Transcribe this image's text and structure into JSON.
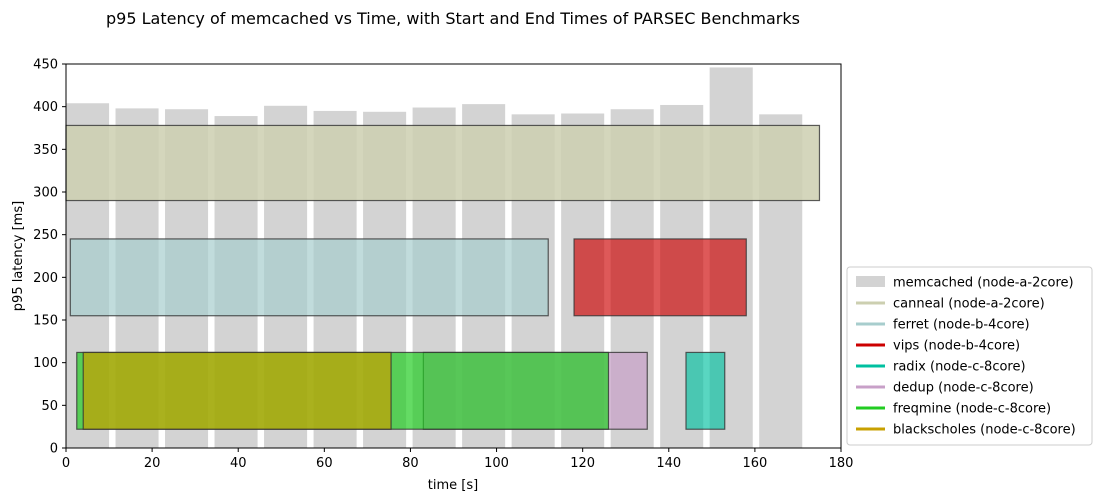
{
  "chart_data": {
    "type": "bar",
    "title": "p95 Latency of memcached vs Time, with Start and End Times of PARSEC Benchmarks",
    "xlabel": "time [s]",
    "ylabel": "p95 latency [ms]",
    "xlim": [
      0,
      180
    ],
    "ylim": [
      0,
      450
    ],
    "xticks": [
      "0",
      "20",
      "40",
      "60",
      "80",
      "100",
      "120",
      "140",
      "160",
      "180"
    ],
    "yticks": [
      "0",
      "50",
      "100",
      "150",
      "200",
      "250",
      "300",
      "350",
      "400",
      "450"
    ],
    "grid": false,
    "legend_position": "right",
    "memcached": {
      "name": "memcached (node-a-2core)",
      "color": "#d3d3d3",
      "bar_width": 10,
      "x": [
        5,
        16.5,
        28,
        39.5,
        51,
        62.5,
        74,
        85.5,
        97,
        108.5,
        120,
        131.5,
        143,
        154.5,
        166
      ],
      "values": [
        404,
        398,
        397,
        389,
        401,
        395,
        394,
        399,
        403,
        391,
        392,
        397,
        402,
        446,
        391
      ]
    },
    "benchmarks": [
      {
        "name": "canneal (node-a-2core)",
        "color": "#cccfb0",
        "start": 0,
        "end": 175,
        "y_low": 290,
        "y_high": 378,
        "alpha": 0.85
      },
      {
        "name": "ferret (node-b-4core)",
        "color": "#a7cdcd",
        "start": 1,
        "end": 112,
        "y_low": 155,
        "y_high": 245,
        "alpha": 0.7
      },
      {
        "name": "vips (node-b-4core)",
        "color": "#cc0000",
        "start": 118,
        "end": 158,
        "y_low": 155,
        "y_high": 245,
        "alpha": 0.65
      },
      {
        "name": "radix (node-c-8core)",
        "color": "#00c0a0",
        "start": 144,
        "end": 153,
        "y_low": 22,
        "y_high": 112,
        "alpha": 0.65
      },
      {
        "name": "dedup (node-c-8core)",
        "color": "#c8a0c8",
        "start": 83,
        "end": 135,
        "y_low": 22,
        "y_high": 112,
        "alpha": 0.7
      },
      {
        "name": "freqmine (node-c-8core)",
        "color": "#22cc22",
        "start": 2.5,
        "end": 126,
        "y_low": 22,
        "y_high": 112,
        "alpha": 0.7
      },
      {
        "name": "blackscholes (node-c-8core)",
        "color": "#c8a000",
        "start": 4,
        "end": 75.5,
        "y_low": 22,
        "y_high": 112,
        "alpha": 0.7
      }
    ],
    "legend": [
      {
        "label": "memcached (node-a-2core)",
        "color": "#d3d3d3",
        "kind": "patch"
      },
      {
        "label": "canneal (node-a-2core)",
        "color": "#cccfb0",
        "kind": "line"
      },
      {
        "label": "ferret (node-b-4core)",
        "color": "#a7cdcd",
        "kind": "line"
      },
      {
        "label": "vips (node-b-4core)",
        "color": "#cc0000",
        "kind": "line"
      },
      {
        "label": "radix (node-c-8core)",
        "color": "#00c0a0",
        "kind": "line"
      },
      {
        "label": "dedup (node-c-8core)",
        "color": "#c8a0c8",
        "kind": "line"
      },
      {
        "label": "freqmine (node-c-8core)",
        "color": "#22cc22",
        "kind": "line"
      },
      {
        "label": "blackscholes (node-c-8core)",
        "color": "#c8a000",
        "kind": "line"
      }
    ]
  }
}
